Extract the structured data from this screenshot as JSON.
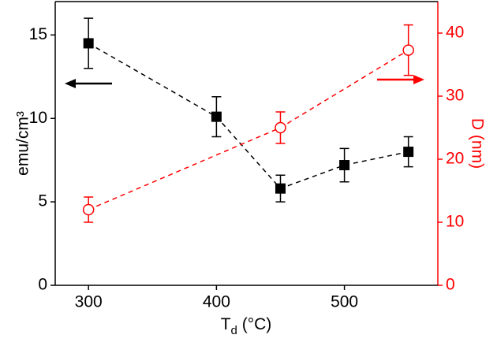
{
  "chart_data": {
    "type": "scatter",
    "x_label": {
      "main": "T",
      "sub": "d",
      "rest": " (°C)"
    },
    "y_label": "emu/cm³",
    "y2_label": "D (nm)",
    "xlim": [
      274,
      573
    ],
    "xticks": [
      300,
      400,
      500
    ],
    "ylim": [
      0,
      17
    ],
    "yticks": [
      0,
      5,
      10,
      15
    ],
    "y2lim": [
      0,
      45
    ],
    "y2ticks": [
      0,
      10,
      20,
      30,
      40
    ],
    "y_color": "#000000",
    "y2_color": "#ff0000",
    "series": [
      {
        "color": "#000000",
        "marker": "square",
        "x": [
          300,
          400,
          450,
          500,
          550
        ],
        "values": [
          14.5,
          10.1,
          5.8,
          7.2,
          8.0
        ],
        "errors": [
          1.5,
          1.2,
          0.8,
          1.0,
          0.9
        ]
      },
      {
        "color": "#ff0000",
        "marker": "open-circle",
        "axis": "y2",
        "x": [
          300,
          450,
          550
        ],
        "values": [
          12,
          25,
          37.3
        ],
        "errors": [
          2,
          2.5,
          4
        ]
      }
    ]
  }
}
